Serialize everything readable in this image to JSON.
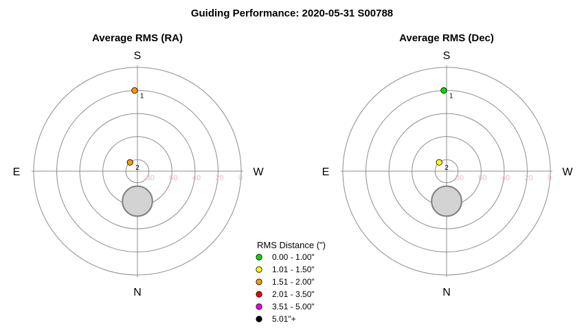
{
  "title": "Guiding Performance: 2020-05-31 S00788",
  "chart_data": {
    "type": "scatter",
    "projection": "polar-sky",
    "radial_axis": {
      "quantity": "altitude",
      "unit": "deg",
      "range": [
        90,
        0
      ],
      "ring_values": [
        90,
        80,
        60,
        40,
        20,
        0
      ],
      "tick_labels": [
        "80",
        "60",
        "40",
        "20",
        "0"
      ]
    },
    "moon_marker": {
      "altitude": 64,
      "azimuth": 0,
      "radius_deg": 13,
      "color": "#d3d3d3"
    },
    "panels": [
      {
        "title": "Average RMS (RA)",
        "compass": {
          "top": "S",
          "bottom": "N",
          "left": "E",
          "right": "W"
        },
        "points": [
          {
            "label": "1",
            "altitude": 20,
            "azimuth_offset": -2,
            "color": "#ff9900"
          },
          {
            "label": "2",
            "altitude": 80,
            "azimuth_offset": -40,
            "color": "#ff9900"
          }
        ]
      },
      {
        "title": "Average RMS (Dec)",
        "compass": {
          "top": "S",
          "bottom": "N",
          "left": "E",
          "right": "W"
        },
        "points": [
          {
            "label": "1",
            "altitude": 20,
            "azimuth_offset": -2,
            "color": "#00dd00"
          },
          {
            "label": "2",
            "altitude": 80,
            "azimuth_offset": -40,
            "color": "#ffff00"
          }
        ]
      }
    ],
    "legend": {
      "title": "RMS Distance (\")",
      "placement": "bottom-center",
      "entries": [
        {
          "label": "0.00 - 1.00\"",
          "color": "#00dd00"
        },
        {
          "label": "1.01 - 1.50\"",
          "color": "#ffff00"
        },
        {
          "label": "1.51 - 2.00\"",
          "color": "#ff9900"
        },
        {
          "label": "2.01 - 3.50\"",
          "color": "#ee0000"
        },
        {
          "label": "3.51 - 5.00\"",
          "color": "#ee00ee"
        },
        {
          "label": "5.01\"+",
          "color": "#000000"
        }
      ]
    }
  }
}
